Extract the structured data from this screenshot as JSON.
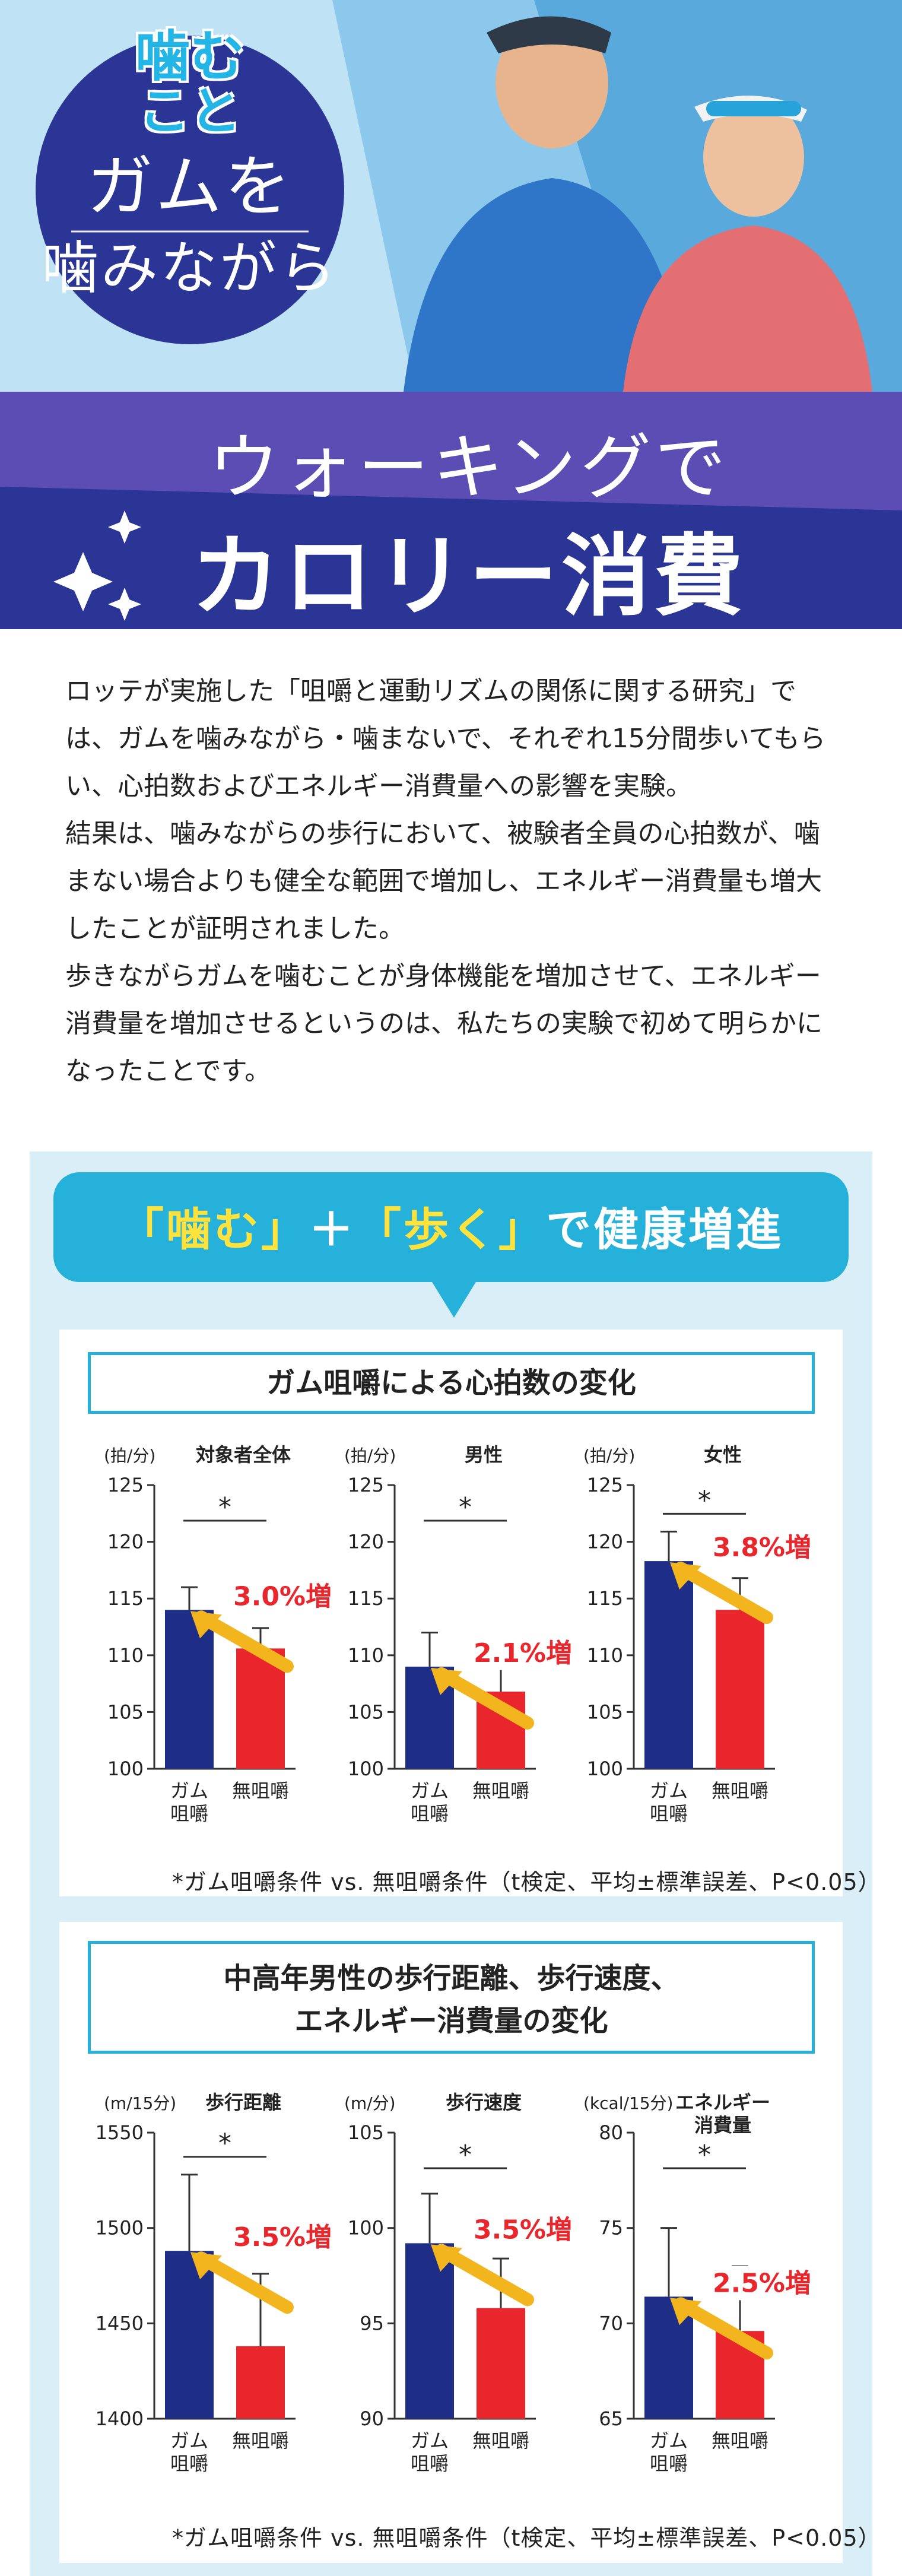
{
  "hero": {
    "logo_line1": "噛む",
    "logo_line2": "こと",
    "circle_line1": "ガムを",
    "circle_line2": "噛みながら",
    "band_line1": "ウォーキングで",
    "band_line2": "カロリー消費",
    "colors": {
      "navy": "#2a3595",
      "purple": "#5b4db3",
      "sky": "#bfe3f5",
      "brand_blue": "#23b5e6"
    }
  },
  "intro": {
    "paragraphs": [
      "ロッテが実施した「咀嚼と運動リズムの関係に関する研究」では、ガムを噛みながら・噛まないで、それぞれ15分間歩いてもらい、心拍数およびエネルギー消費量への影響を実験。",
      "結果は、噛みながらの歩行において、被験者全員の心拍数が、噛まない場合よりも健全な範囲で増加し、エネルギー消費量も増大したことが証明されました。",
      "歩きながらガムを噛むことが身体機能を増加させて、エネルギー消費量を増加させるというのは、私たちの実験で初めて明らかになったことです。"
    ]
  },
  "banner": {
    "part1": "「噛む」",
    "plus": "＋",
    "part2": "「歩く」",
    "part3": "で",
    "part4": "健康増進"
  },
  "section1": {
    "title": "ガム咀嚼による心拍数の変化",
    "footnote": "*ガム咀嚼条件 vs. 無咀嚼条件（t検定、平均±標準誤差、P<0.05）"
  },
  "section2": {
    "title_line1": "中高年男性の歩行距離、歩行速度、",
    "title_line2": "エネルギー消費量の変化",
    "footnote": "*ガム咀嚼条件 vs. 無咀嚼条件（t検定、平均±標準誤差、P<0.05）"
  },
  "chart_data": [
    {
      "type": "bar",
      "unit": "(拍/分)",
      "title": "対象者全体",
      "categories": [
        "ガム\n咀嚼",
        "無咀嚼"
      ],
      "values": [
        114,
        110.6
      ],
      "errors": [
        2.0,
        1.8
      ],
      "ylim": [
        100,
        125
      ],
      "yticks": [
        100,
        105,
        110,
        115,
        120,
        125
      ],
      "annotation": "3.0%増",
      "significance": "*",
      "colors": [
        "#1e2e86",
        "#e8262c"
      ]
    },
    {
      "type": "bar",
      "unit": "(拍/分)",
      "title": "男性",
      "categories": [
        "ガム\n咀嚼",
        "無咀嚼"
      ],
      "values": [
        109,
        106.8
      ],
      "errors": [
        3.0,
        3.0
      ],
      "ylim": [
        100,
        125
      ],
      "yticks": [
        100,
        105,
        110,
        115,
        120,
        125
      ],
      "annotation": "2.1%増",
      "significance": "*",
      "colors": [
        "#1e2e86",
        "#e8262c"
      ]
    },
    {
      "type": "bar",
      "unit": "(拍/分)",
      "title": "女性",
      "categories": [
        "ガム\n咀嚼",
        "無咀嚼"
      ],
      "values": [
        118.3,
        114
      ],
      "errors": [
        2.6,
        2.8
      ],
      "ylim": [
        100,
        125
      ],
      "yticks": [
        100,
        105,
        110,
        115,
        120,
        125
      ],
      "annotation": "3.8%増",
      "significance": "*",
      "colors": [
        "#1e2e86",
        "#e8262c"
      ]
    },
    {
      "type": "bar",
      "unit": "(m/15分)",
      "title": "歩行距離",
      "categories": [
        "ガム\n咀嚼",
        "無咀嚼"
      ],
      "values": [
        1488,
        1438
      ],
      "errors": [
        40,
        38
      ],
      "ylim": [
        1400,
        1550
      ],
      "yticks": [
        1400,
        1450,
        1500,
        1550
      ],
      "annotation": "3.5%増",
      "significance": "*",
      "colors": [
        "#1e2e86",
        "#e8262c"
      ]
    },
    {
      "type": "bar",
      "unit": "(m/分)",
      "title": "歩行速度",
      "categories": [
        "ガム\n咀嚼",
        "無咀嚼"
      ],
      "values": [
        99.2,
        95.8
      ],
      "errors": [
        2.6,
        2.6
      ],
      "ylim": [
        90,
        105
      ],
      "yticks": [
        90,
        95,
        100,
        105
      ],
      "annotation": "3.5%増",
      "significance": "*",
      "colors": [
        "#1e2e86",
        "#e8262c"
      ]
    },
    {
      "type": "bar",
      "unit": "(kcal/15分)",
      "title": "エネルギー\n消費量",
      "categories": [
        "ガム\n咀嚼",
        "無咀嚼"
      ],
      "values": [
        71.4,
        69.6
      ],
      "errors": [
        3.6,
        3.4
      ],
      "ylim": [
        65,
        80
      ],
      "yticks": [
        65,
        70,
        75,
        80
      ],
      "annotation": "2.5%増",
      "significance": "*",
      "colors": [
        "#1e2e86",
        "#e8262c"
      ]
    }
  ]
}
